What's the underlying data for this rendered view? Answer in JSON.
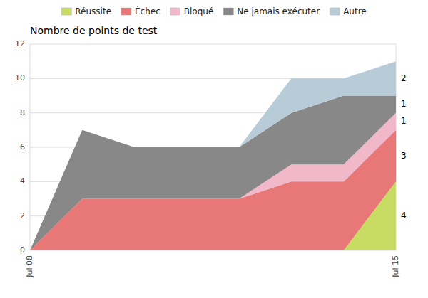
{
  "chart_data": {
    "type": "area",
    "stacked": true,
    "title": "Nombre de points de test",
    "categories": [
      "Jul 08",
      null,
      null,
      null,
      null,
      null,
      null,
      "Jul 15"
    ],
    "series": [
      {
        "name": "Réussite",
        "color": "#c8dc64",
        "values": [
          0,
          0,
          0,
          0,
          0,
          0,
          0,
          4
        ],
        "value_labels": [
          null,
          null,
          null,
          null,
          null,
          null,
          null,
          "4"
        ]
      },
      {
        "name": "Échec",
        "color": "#e87878",
        "values": [
          0,
          3,
          3,
          3,
          3,
          4,
          4,
          3
        ],
        "value_labels": [
          null,
          null,
          null,
          null,
          null,
          null,
          null,
          "3"
        ]
      },
      {
        "name": "Bloqué",
        "color": "#f0b8c8",
        "values": [
          0,
          0,
          0,
          0,
          0,
          1,
          1,
          1
        ],
        "value_labels": [
          null,
          null,
          null,
          null,
          null,
          null,
          null,
          "1"
        ]
      },
      {
        "name": "Ne jamais exécuter",
        "color": "#888888",
        "values": [
          0,
          4,
          3,
          3,
          3,
          3,
          4,
          1
        ],
        "value_labels": [
          null,
          null,
          null,
          null,
          null,
          null,
          null,
          "1"
        ]
      },
      {
        "name": "Autre",
        "color": "#b8ccd8",
        "values": [
          0,
          0,
          0,
          0,
          0,
          2,
          1,
          2
        ],
        "value_labels": [
          null,
          null,
          null,
          null,
          null,
          null,
          null,
          "2"
        ]
      }
    ],
    "ylim": [
      0,
      12
    ],
    "yticks": [
      0,
      2,
      4,
      6,
      8,
      10,
      12
    ],
    "grid": true,
    "legend": "top",
    "data_labels": true
  }
}
